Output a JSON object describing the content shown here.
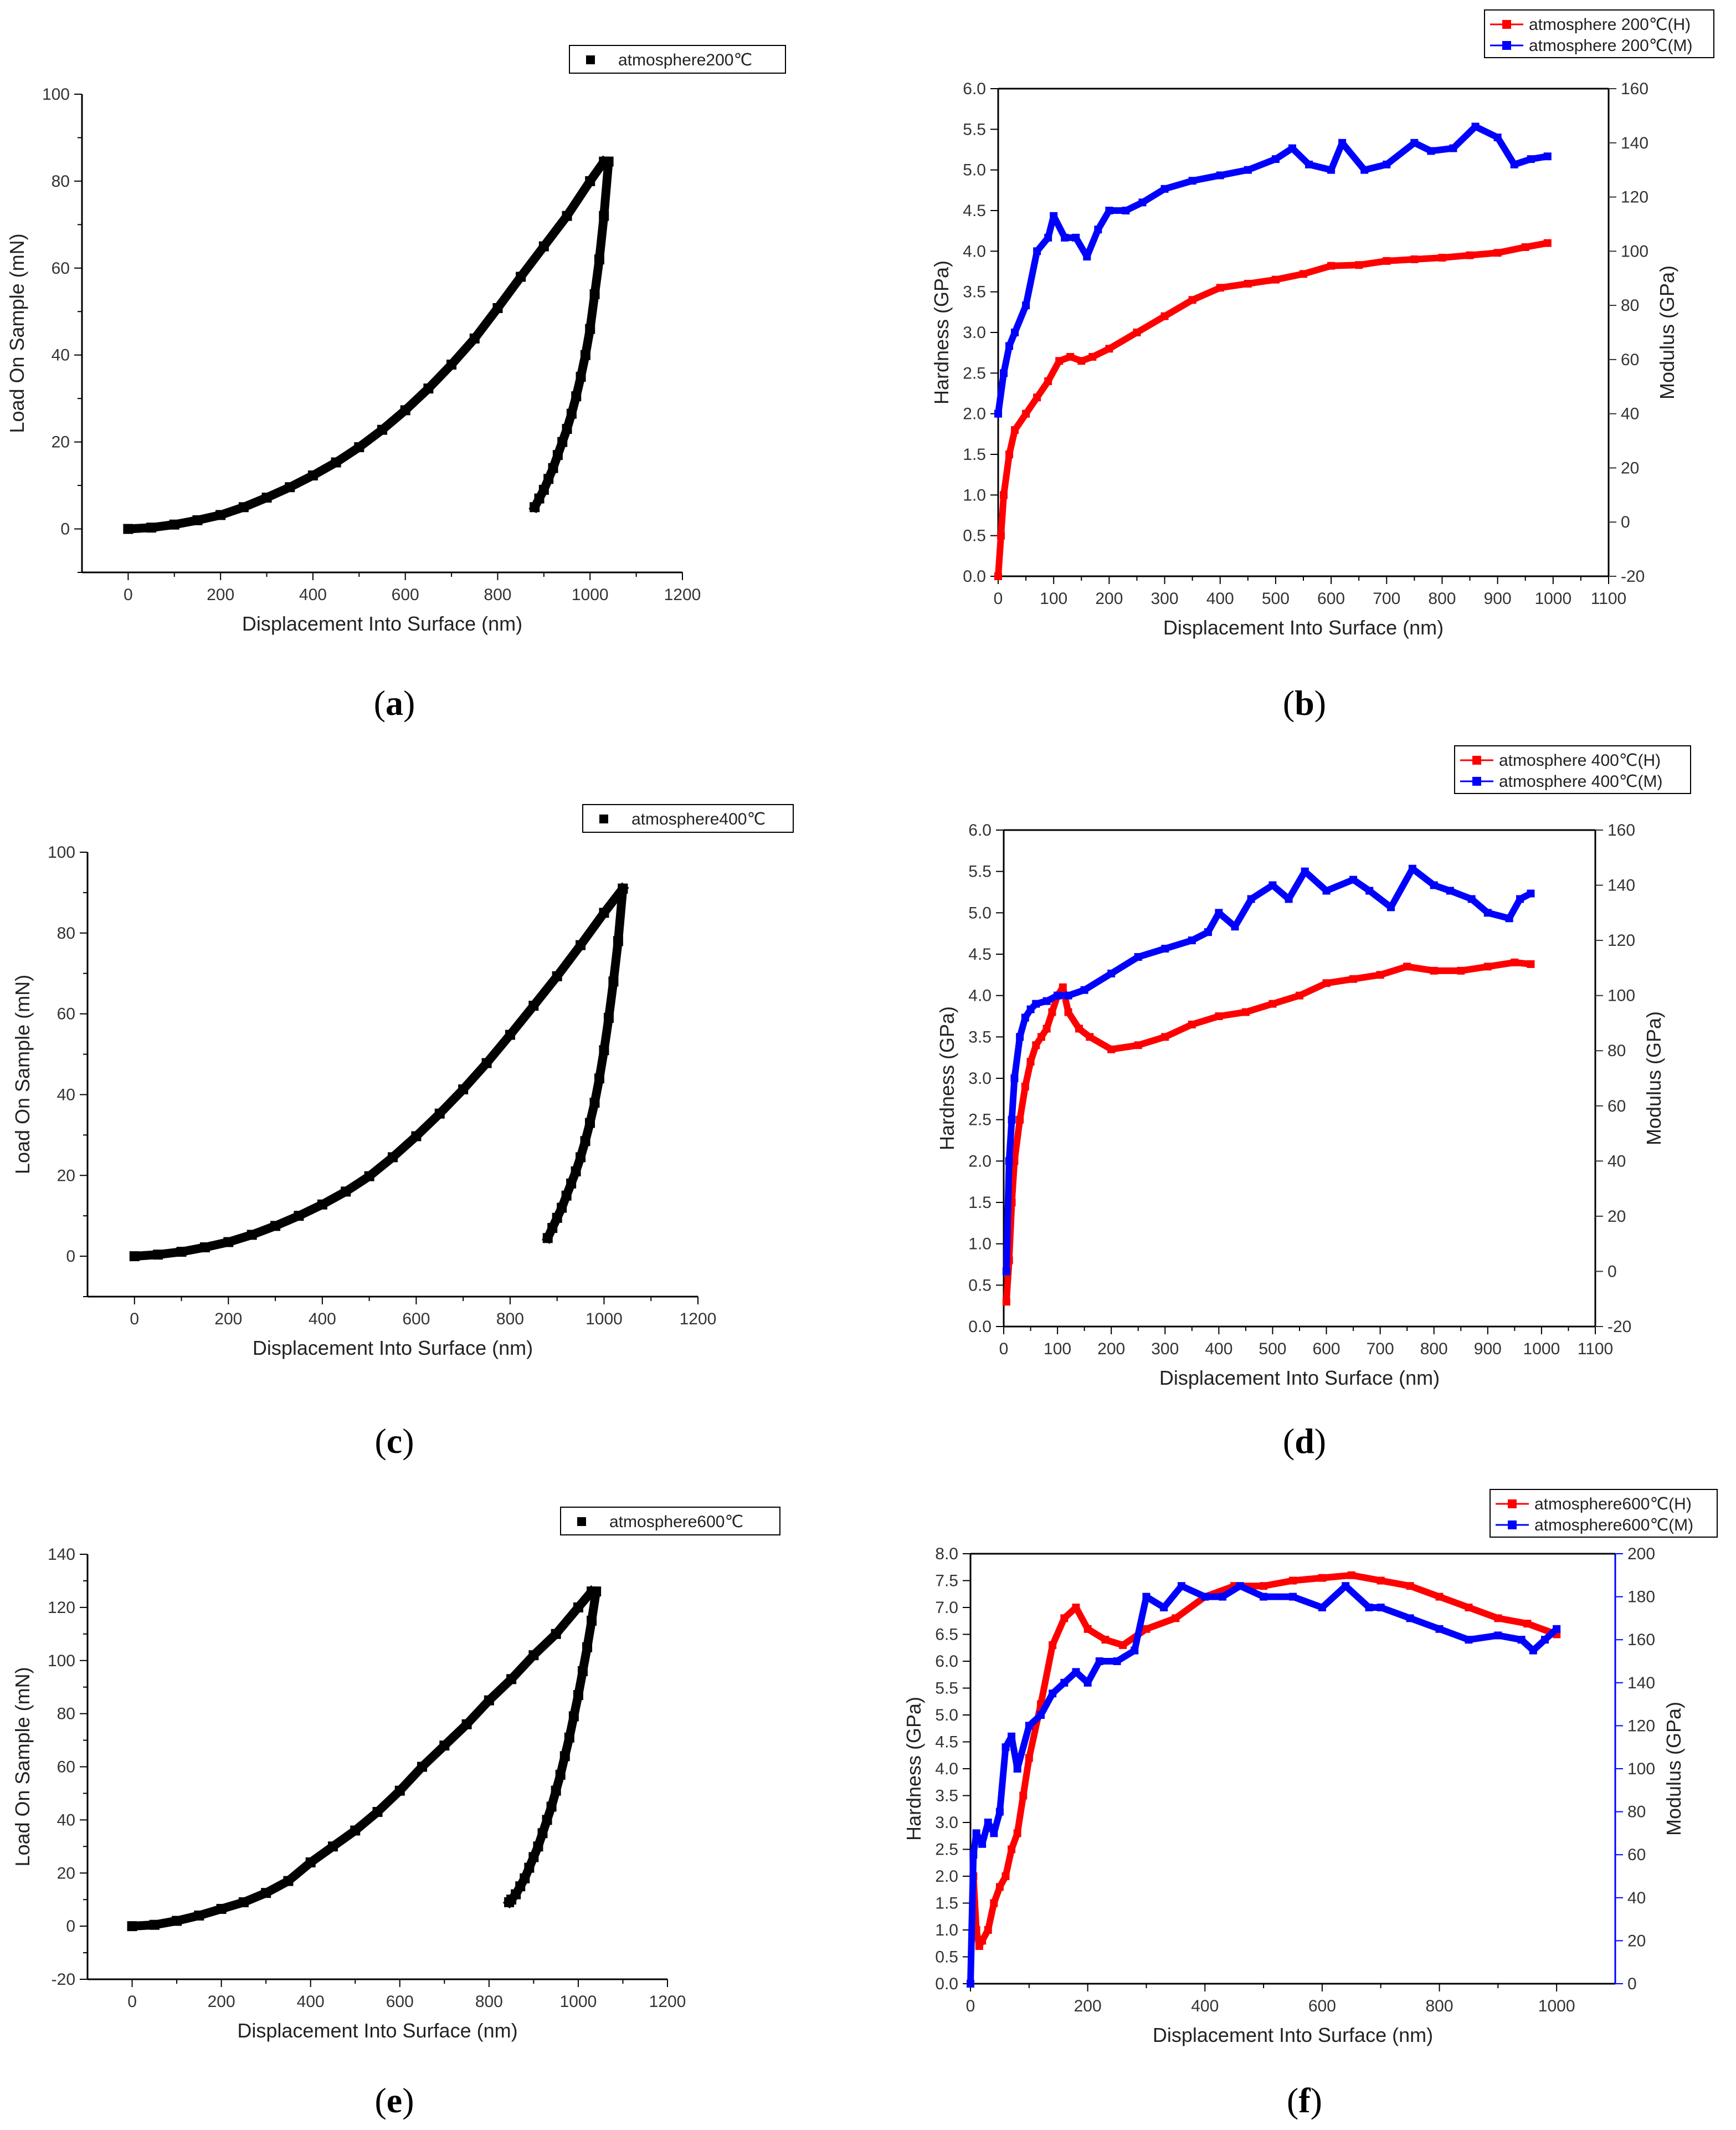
{
  "chart_data": [
    {
      "type": "scatter",
      "panel": "a",
      "caption": "a",
      "xlabel": "Displacement Into Surface (nm)",
      "ylabel": "Load On Sample (mN)",
      "xlim": [
        -100,
        1200
      ],
      "ylim": [
        -10,
        100
      ],
      "xticks": [
        0,
        200,
        400,
        600,
        800,
        1000,
        1200
      ],
      "yticks": [
        0,
        20,
        40,
        60,
        80,
        100
      ],
      "legend": [
        {
          "label": "atmosphere200℃",
          "color": "#000000"
        }
      ],
      "series": [
        {
          "name": "atmosphere200℃",
          "color": "#000000",
          "loading": {
            "x": [
              0,
              50,
              100,
              150,
              200,
              250,
              300,
              350,
              400,
              450,
              500,
              550,
              600,
              650,
              700,
              750,
              800,
              850,
              900,
              950,
              1000,
              1030
            ],
            "y": [
              0,
              0.3,
              1.0,
              2.0,
              3.2,
              5.0,
              7.2,
              9.6,
              12.3,
              15.3,
              18.8,
              22.8,
              27.3,
              32.3,
              37.8,
              43.8,
              50.8,
              58.0,
              65.0,
              72.0,
              80.0,
              84.5
            ]
          },
          "unloading": {
            "x": [
              1040,
              1030,
              1020,
              1010,
              1000,
              990,
              980,
              970,
              960,
              950,
              940,
              930,
              920,
              910,
              900,
              890,
              880
            ],
            "y": [
              84.5,
              72,
              62,
              54,
              46,
              40,
              35,
              30.5,
              26.5,
              23,
              20,
              17,
              14,
              11.5,
              9,
              7,
              5
            ]
          }
        }
      ]
    },
    {
      "type": "line",
      "panel": "b",
      "caption": "b",
      "xlabel": "Displacement Into Surface (nm)",
      "ylabel": "Hardness (GPa)",
      "y2label": "Modulus (GPa)",
      "xlim": [
        0,
        1100
      ],
      "ylim": [
        0,
        6
      ],
      "y2lim": [
        -20,
        160
      ],
      "xticks": [
        0,
        100,
        200,
        300,
        400,
        500,
        600,
        700,
        800,
        900,
        1000,
        1100
      ],
      "yticks": [
        0.0,
        0.5,
        1.0,
        1.5,
        2.0,
        2.5,
        3.0,
        3.5,
        4.0,
        4.5,
        5.0,
        5.5,
        6.0
      ],
      "y2ticks": [
        -20,
        0,
        20,
        40,
        60,
        80,
        100,
        120,
        140,
        160
      ],
      "legend": [
        {
          "label": "atmosphere 200℃(H)",
          "color": "#ff0000"
        },
        {
          "label": "atmosphere 200℃(M)",
          "color": "#0000ff"
        }
      ],
      "series": [
        {
          "name": "atmosphere 200℃(H)",
          "color": "#ff0000",
          "axis": "left",
          "x": [
            0,
            5,
            10,
            20,
            30,
            50,
            70,
            90,
            110,
            130,
            150,
            170,
            200,
            250,
            300,
            350,
            400,
            450,
            500,
            550,
            600,
            650,
            700,
            750,
            800,
            850,
            900,
            950,
            990
          ],
          "y": [
            0.0,
            0.5,
            1.0,
            1.5,
            1.8,
            2.0,
            2.2,
            2.4,
            2.65,
            2.7,
            2.65,
            2.7,
            2.8,
            3.0,
            3.2,
            3.4,
            3.55,
            3.6,
            3.65,
            3.72,
            3.82,
            3.83,
            3.88,
            3.9,
            3.92,
            3.95,
            3.98,
            4.05,
            4.1
          ]
        },
        {
          "name": "atmosphere 200℃(M)",
          "color": "#0000ff",
          "axis": "right",
          "x": [
            0,
            10,
            20,
            30,
            50,
            70,
            90,
            100,
            120,
            140,
            160,
            180,
            200,
            230,
            260,
            300,
            350,
            400,
            450,
            500,
            530,
            560,
            600,
            620,
            660,
            700,
            750,
            780,
            820,
            860,
            900,
            930,
            960,
            990
          ],
          "y": [
            40,
            55,
            65,
            70,
            80,
            100,
            105,
            113,
            105,
            105,
            98,
            108,
            115,
            115,
            118,
            123,
            126,
            128,
            130,
            134,
            138,
            132,
            130,
            140,
            130,
            132,
            140,
            137,
            138,
            146,
            142,
            132,
            134,
            135
          ]
        }
      ]
    },
    {
      "type": "scatter",
      "panel": "c",
      "caption": "c",
      "xlabel": "Displacement Into Surface (nm)",
      "ylabel": "Load On Sample (mN)",
      "xlim": [
        -100,
        1200
      ],
      "ylim": [
        -10,
        100
      ],
      "xticks": [
        0,
        200,
        400,
        600,
        800,
        1000,
        1200
      ],
      "yticks": [
        0,
        20,
        40,
        60,
        80,
        100
      ],
      "legend": [
        {
          "label": "atmosphere400℃",
          "color": "#000000"
        }
      ],
      "series": [
        {
          "name": "atmosphere400℃",
          "color": "#000000",
          "loading": {
            "x": [
              0,
              50,
              100,
              150,
              200,
              250,
              300,
              350,
              400,
              450,
              500,
              550,
              600,
              650,
              700,
              750,
              800,
              850,
              900,
              950,
              1000,
              1040
            ],
            "y": [
              0,
              0.4,
              1.1,
              2.2,
              3.5,
              5.3,
              7.5,
              10.0,
              12.8,
              16.0,
              19.8,
              24.5,
              29.7,
              35.3,
              41.3,
              47.8,
              54.8,
              62.0,
              69.3,
              77.0,
              85.0,
              91.0
            ]
          },
          "unloading": {
            "x": [
              1040,
              1030,
              1020,
              1010,
              1000,
              990,
              980,
              970,
              960,
              950,
              940,
              930,
              920,
              910,
              900,
              890,
              880
            ],
            "y": [
              91,
              78,
              68,
              59,
              51,
              44,
              38,
              33,
              28.5,
              24.5,
              21,
              18,
              15,
              12,
              9.5,
              7,
              4.5
            ]
          }
        }
      ]
    },
    {
      "type": "line",
      "panel": "d",
      "caption": "d",
      "xlabel": "Displacement Into Surface (nm)",
      "ylabel": "Hardness (GPa)",
      "y2label": "Modulus (GPa)",
      "xlim": [
        0,
        1100
      ],
      "ylim": [
        0,
        6
      ],
      "y2lim": [
        -20,
        160
      ],
      "xticks": [
        0,
        100,
        200,
        300,
        400,
        500,
        600,
        700,
        800,
        900,
        1000,
        1100
      ],
      "yticks": [
        0.0,
        0.5,
        1.0,
        1.5,
        2.0,
        2.5,
        3.0,
        3.5,
        4.0,
        4.5,
        5.0,
        5.5,
        6.0
      ],
      "y2ticks": [
        -20,
        0,
        20,
        40,
        60,
        80,
        100,
        120,
        140,
        160
      ],
      "legend": [
        {
          "label": "atmosphere 400℃(H)",
          "color": "#ff0000"
        },
        {
          "label": "atmosphere 400℃(M)",
          "color": "#0000ff"
        }
      ],
      "series": [
        {
          "name": "atmosphere 400℃(H)",
          "color": "#ff0000",
          "axis": "left",
          "x": [
            5,
            10,
            15,
            20,
            30,
            40,
            50,
            60,
            70,
            80,
            90,
            100,
            110,
            120,
            140,
            160,
            200,
            250,
            300,
            350,
            400,
            450,
            500,
            550,
            600,
            650,
            700,
            750,
            800,
            850,
            900,
            950,
            980
          ],
          "y": [
            0.3,
            0.8,
            1.5,
            2.0,
            2.5,
            2.9,
            3.2,
            3.4,
            3.5,
            3.6,
            3.8,
            4.0,
            4.1,
            3.8,
            3.6,
            3.5,
            3.35,
            3.4,
            3.5,
            3.65,
            3.75,
            3.8,
            3.9,
            4.0,
            4.15,
            4.2,
            4.25,
            4.35,
            4.3,
            4.3,
            4.35,
            4.4,
            4.38
          ]
        },
        {
          "name": "atmosphere 400℃(M)",
          "color": "#0000ff",
          "axis": "right",
          "x": [
            5,
            10,
            15,
            20,
            30,
            40,
            50,
            60,
            80,
            100,
            120,
            150,
            200,
            250,
            300,
            350,
            380,
            400,
            430,
            460,
            500,
            530,
            560,
            600,
            650,
            680,
            720,
            760,
            800,
            830,
            870,
            900,
            940,
            960,
            980
          ],
          "y": [
            0,
            40,
            55,
            70,
            85,
            92,
            95,
            97,
            98,
            100,
            100,
            102,
            108,
            114,
            117,
            120,
            123,
            130,
            125,
            135,
            140,
            135,
            145,
            138,
            142,
            138,
            132,
            146,
            140,
            138,
            135,
            130,
            128,
            135,
            137
          ]
        }
      ]
    },
    {
      "type": "scatter",
      "panel": "e",
      "caption": "e",
      "xlabel": "Displacement Into Surface (nm)",
      "ylabel": "Load On Sample (mN)",
      "xlim": [
        -100,
        1200
      ],
      "ylim": [
        -20,
        140
      ],
      "xticks": [
        0,
        200,
        400,
        600,
        800,
        1000,
        1200
      ],
      "yticks": [
        -20,
        0,
        20,
        40,
        60,
        80,
        100,
        120,
        140
      ],
      "legend": [
        {
          "label": "atmosphere600℃",
          "color": "#000000"
        }
      ],
      "series": [
        {
          "name": "atmosphere600℃",
          "color": "#000000",
          "loading": {
            "x": [
              0,
              50,
              100,
              150,
              200,
              250,
              300,
              350,
              400,
              450,
              500,
              550,
              600,
              650,
              700,
              750,
              800,
              850,
              900,
              950,
              1000,
              1030
            ],
            "y": [
              0,
              0.5,
              2.0,
              4.0,
              6.5,
              9.0,
              12.5,
              17.0,
              24.0,
              30.0,
              36.0,
              43.0,
              51.0,
              60.0,
              68.0,
              76.0,
              85.0,
              93.0,
              102.0,
              110.0,
              120.0,
              126.0
            ]
          },
          "unloading": {
            "x": [
              1040,
              1030,
              1020,
              1010,
              1000,
              990,
              980,
              970,
              960,
              950,
              940,
              930,
              920,
              910,
              900,
              890,
              880,
              870,
              860,
              850,
              845
            ],
            "y": [
              126,
              115,
              105,
              96,
              87,
              79,
              71,
              64,
              57,
              51,
              45,
              40,
              35,
              30,
              26,
              22,
              18,
              15,
              12,
              10,
              9
            ]
          }
        }
      ]
    },
    {
      "type": "line",
      "panel": "f",
      "caption": "f",
      "xlabel": "Displacement Into Surface (nm)",
      "ylabel": "Hardness (GPa)",
      "y2label": "Modulus (GPa)",
      "xlim": [
        0,
        1100
      ],
      "ylim": [
        0,
        8
      ],
      "y2lim": [
        0,
        200
      ],
      "xticks": [
        0,
        200,
        400,
        600,
        800,
        1000
      ],
      "yticks": [
        0.0,
        0.5,
        1.0,
        1.5,
        2.0,
        2.5,
        3.0,
        3.5,
        4.0,
        4.5,
        5.0,
        5.5,
        6.0,
        6.5,
        7.0,
        7.5,
        8.0
      ],
      "y2ticks": [
        0,
        20,
        40,
        60,
        80,
        100,
        120,
        140,
        160,
        180,
        200
      ],
      "legend": [
        {
          "label": "atmosphere600℃(H)",
          "color": "#ff0000"
        },
        {
          "label": "atmosphere600℃(M)",
          "color": "#0000ff"
        }
      ],
      "series": [
        {
          "name": "atmosphere600℃(H)",
          "color": "#ff0000",
          "axis": "left",
          "x": [
            5,
            10,
            15,
            20,
            30,
            40,
            50,
            60,
            70,
            80,
            90,
            100,
            120,
            140,
            160,
            180,
            200,
            230,
            260,
            300,
            350,
            400,
            450,
            500,
            550,
            600,
            650,
            700,
            750,
            800,
            850,
            900,
            950,
            1000
          ],
          "y": [
            2.0,
            1.0,
            0.7,
            0.8,
            1.0,
            1.5,
            1.8,
            2.0,
            2.5,
            2.8,
            3.5,
            4.2,
            5.2,
            6.3,
            6.8,
            7.0,
            6.6,
            6.4,
            6.3,
            6.6,
            6.8,
            7.2,
            7.4,
            7.4,
            7.5,
            7.55,
            7.6,
            7.5,
            7.4,
            7.2,
            7.0,
            6.8,
            6.7,
            6.5
          ]
        },
        {
          "name": "atmosphere600℃(M)",
          "color": "#0000ff",
          "axis": "right",
          "x": [
            0,
            5,
            10,
            20,
            30,
            40,
            50,
            60,
            70,
            80,
            100,
            120,
            140,
            160,
            180,
            200,
            220,
            250,
            280,
            300,
            330,
            360,
            400,
            430,
            460,
            500,
            550,
            600,
            640,
            680,
            700,
            750,
            800,
            850,
            900,
            940,
            960,
            980,
            1000
          ],
          "y": [
            0,
            60,
            70,
            65,
            75,
            70,
            80,
            110,
            115,
            100,
            120,
            125,
            135,
            140,
            145,
            140,
            150,
            150,
            155,
            180,
            175,
            185,
            180,
            180,
            185,
            180,
            180,
            175,
            185,
            175,
            175,
            170,
            165,
            160,
            162,
            160,
            155,
            160,
            165
          ]
        }
      ]
    }
  ]
}
